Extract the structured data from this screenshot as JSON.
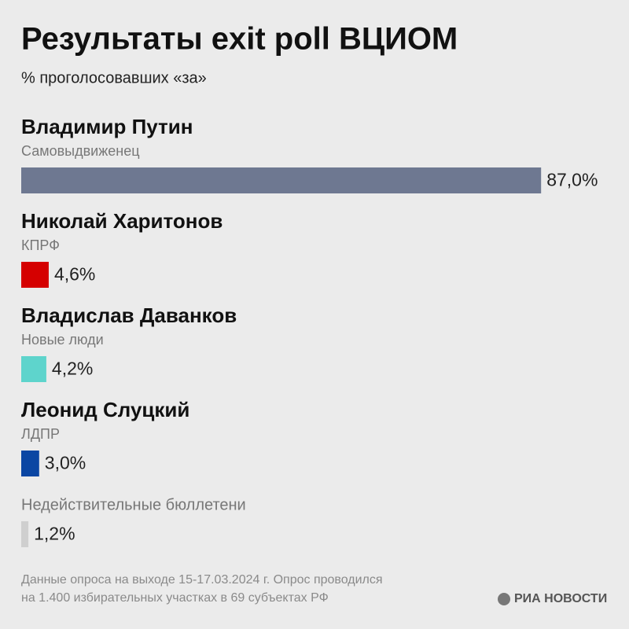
{
  "chart_data": {
    "type": "bar",
    "orientation": "horizontal",
    "title": "Результаты exit poll ВЦИОМ",
    "subtitle": "% проголосовавших «за»",
    "categories": [
      "Владимир Путин",
      "Николай Харитонов",
      "Владислав Даванков",
      "Леонид Слуцкий",
      "Недействительные бюллетени"
    ],
    "parties": [
      "Самовыдвиженец",
      "КПРФ",
      "Новые люди",
      "ЛДПР",
      null
    ],
    "values": [
      87.0,
      4.6,
      4.2,
      3.0,
      1.2
    ],
    "value_labels": [
      "87,0%",
      "4,6%",
      "4,2%",
      "3,0%",
      "1,2%"
    ],
    "colors": [
      "#6e7891",
      "#d50000",
      "#5ed4cc",
      "#0b46a3",
      "#cfcfcf"
    ],
    "footnote": [
      "Данные опроса на выходе 15-17.03.2024 г. Опрос проводился",
      "на 1.400 избирательных участках в 69 субъектах РФ"
    ],
    "source": "РИА НОВОСТИ"
  }
}
